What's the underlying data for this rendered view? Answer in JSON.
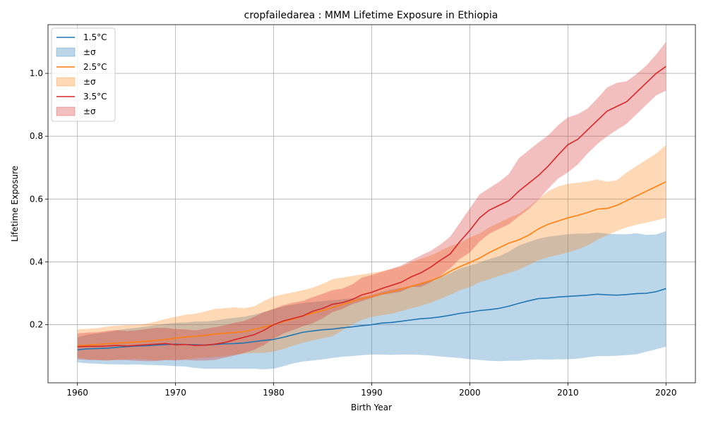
{
  "chart_data": {
    "type": "line",
    "title": "cropfailedarea : MMM Lifetime Exposure in Ethiopia",
    "xlabel": "Birth Year",
    "ylabel": "Lifetime Exposure",
    "xlim": [
      1957,
      2023
    ],
    "ylim": [
      0.015,
      1.155
    ],
    "xticks": [
      1960,
      1970,
      1980,
      1990,
      2000,
      2010,
      2020
    ],
    "yticks": [
      0.2,
      0.4,
      0.6,
      0.8,
      1.0
    ],
    "ytick_labels": [
      "0.2",
      "0.4",
      "0.6",
      "0.8",
      "1.0"
    ],
    "grid": true,
    "legend_position": "top-left",
    "x": [
      1960,
      1961,
      1962,
      1963,
      1964,
      1965,
      1966,
      1967,
      1968,
      1969,
      1970,
      1971,
      1972,
      1973,
      1974,
      1975,
      1976,
      1977,
      1978,
      1979,
      1980,
      1981,
      1982,
      1983,
      1984,
      1985,
      1986,
      1987,
      1988,
      1989,
      1990,
      1991,
      1992,
      1993,
      1994,
      1995,
      1996,
      1997,
      1998,
      1999,
      2000,
      2001,
      2002,
      2003,
      2004,
      2005,
      2006,
      2007,
      2008,
      2009,
      2010,
      2011,
      2012,
      2013,
      2014,
      2015,
      2016,
      2017,
      2018,
      2019,
      2020
    ],
    "series": [
      {
        "name": "1.5°C",
        "band_name": "±σ",
        "color": "#1f77b4",
        "values": [
          0.12,
          0.123,
          0.124,
          0.125,
          0.128,
          0.13,
          0.132,
          0.133,
          0.135,
          0.137,
          0.138,
          0.137,
          0.136,
          0.135,
          0.137,
          0.139,
          0.14,
          0.142,
          0.146,
          0.15,
          0.153,
          0.16,
          0.168,
          0.176,
          0.18,
          0.184,
          0.186,
          0.19,
          0.193,
          0.197,
          0.2,
          0.205,
          0.207,
          0.211,
          0.215,
          0.219,
          0.221,
          0.225,
          0.23,
          0.236,
          0.24,
          0.245,
          0.248,
          0.252,
          0.259,
          0.268,
          0.276,
          0.283,
          0.285,
          0.288,
          0.29,
          0.292,
          0.294,
          0.297,
          0.295,
          0.294,
          0.296,
          0.299,
          0.3,
          0.305,
          0.315
        ],
        "lower": [
          0.08,
          0.077,
          0.076,
          0.074,
          0.074,
          0.073,
          0.074,
          0.072,
          0.071,
          0.07,
          0.068,
          0.067,
          0.062,
          0.06,
          0.06,
          0.06,
          0.06,
          0.06,
          0.06,
          0.058,
          0.06,
          0.068,
          0.077,
          0.083,
          0.086,
          0.09,
          0.094,
          0.098,
          0.1,
          0.103,
          0.105,
          0.105,
          0.104,
          0.105,
          0.105,
          0.104,
          0.102,
          0.099,
          0.096,
          0.094,
          0.09,
          0.088,
          0.085,
          0.084,
          0.085,
          0.085,
          0.088,
          0.09,
          0.089,
          0.09,
          0.09,
          0.092,
          0.096,
          0.1,
          0.1,
          0.101,
          0.103,
          0.106,
          0.114,
          0.122,
          0.13
        ],
        "upper": [
          0.16,
          0.168,
          0.172,
          0.176,
          0.182,
          0.187,
          0.19,
          0.194,
          0.199,
          0.203,
          0.206,
          0.207,
          0.21,
          0.21,
          0.213,
          0.218,
          0.222,
          0.225,
          0.232,
          0.24,
          0.25,
          0.258,
          0.264,
          0.269,
          0.272,
          0.275,
          0.278,
          0.281,
          0.284,
          0.288,
          0.294,
          0.304,
          0.312,
          0.317,
          0.323,
          0.333,
          0.342,
          0.351,
          0.364,
          0.379,
          0.388,
          0.398,
          0.409,
          0.418,
          0.433,
          0.452,
          0.463,
          0.474,
          0.48,
          0.484,
          0.488,
          0.49,
          0.49,
          0.493,
          0.49,
          0.488,
          0.488,
          0.491,
          0.486,
          0.487,
          0.498
        ]
      },
      {
        "name": "2.5°C",
        "band_name": "±σ",
        "color": "#ff7f0e",
        "values": [
          0.133,
          0.135,
          0.137,
          0.139,
          0.141,
          0.143,
          0.145,
          0.147,
          0.15,
          0.153,
          0.157,
          0.161,
          0.163,
          0.166,
          0.17,
          0.173,
          0.175,
          0.178,
          0.185,
          0.192,
          0.2,
          0.21,
          0.218,
          0.228,
          0.237,
          0.245,
          0.255,
          0.264,
          0.274,
          0.283,
          0.29,
          0.298,
          0.305,
          0.313,
          0.322,
          0.33,
          0.34,
          0.352,
          0.37,
          0.385,
          0.398,
          0.412,
          0.43,
          0.445,
          0.46,
          0.47,
          0.485,
          0.505,
          0.52,
          0.53,
          0.54,
          0.548,
          0.557,
          0.568,
          0.57,
          0.58,
          0.595,
          0.61,
          0.625,
          0.64,
          0.655
        ],
        "lower": [
          0.095,
          0.09,
          0.088,
          0.087,
          0.088,
          0.09,
          0.091,
          0.089,
          0.087,
          0.088,
          0.088,
          0.09,
          0.093,
          0.095,
          0.097,
          0.1,
          0.104,
          0.108,
          0.11,
          0.11,
          0.115,
          0.123,
          0.133,
          0.143,
          0.15,
          0.157,
          0.163,
          0.182,
          0.2,
          0.215,
          0.225,
          0.23,
          0.235,
          0.243,
          0.252,
          0.26,
          0.27,
          0.282,
          0.295,
          0.31,
          0.32,
          0.335,
          0.345,
          0.355,
          0.365,
          0.375,
          0.39,
          0.405,
          0.415,
          0.422,
          0.43,
          0.44,
          0.452,
          0.47,
          0.485,
          0.498,
          0.51,
          0.518,
          0.525,
          0.532,
          0.54
        ],
        "upper": [
          0.185,
          0.187,
          0.189,
          0.194,
          0.197,
          0.199,
          0.2,
          0.203,
          0.21,
          0.218,
          0.225,
          0.232,
          0.235,
          0.242,
          0.25,
          0.253,
          0.255,
          0.253,
          0.258,
          0.275,
          0.29,
          0.297,
          0.303,
          0.31,
          0.318,
          0.33,
          0.345,
          0.35,
          0.355,
          0.36,
          0.365,
          0.37,
          0.377,
          0.385,
          0.398,
          0.41,
          0.42,
          0.435,
          0.45,
          0.46,
          0.478,
          0.49,
          0.51,
          0.525,
          0.54,
          0.553,
          0.575,
          0.6,
          0.625,
          0.64,
          0.648,
          0.652,
          0.656,
          0.662,
          0.655,
          0.66,
          0.685,
          0.705,
          0.725,
          0.745,
          0.772
        ]
      },
      {
        "name": "3.5°C",
        "band_name": "±σ",
        "color": "#d62728",
        "values": [
          0.13,
          0.131,
          0.131,
          0.132,
          0.134,
          0.132,
          0.134,
          0.136,
          0.138,
          0.14,
          0.136,
          0.137,
          0.134,
          0.135,
          0.138,
          0.143,
          0.152,
          0.16,
          0.168,
          0.182,
          0.2,
          0.212,
          0.22,
          0.228,
          0.243,
          0.252,
          0.265,
          0.27,
          0.28,
          0.295,
          0.303,
          0.315,
          0.325,
          0.335,
          0.352,
          0.365,
          0.383,
          0.405,
          0.425,
          0.465,
          0.5,
          0.54,
          0.565,
          0.58,
          0.595,
          0.625,
          0.65,
          0.675,
          0.705,
          0.74,
          0.773,
          0.79,
          0.82,
          0.85,
          0.88,
          0.895,
          0.91,
          0.94,
          0.97,
          1.0,
          1.022
        ],
        "lower": [
          0.09,
          0.088,
          0.087,
          0.086,
          0.088,
          0.087,
          0.085,
          0.084,
          0.084,
          0.087,
          0.086,
          0.088,
          0.086,
          0.086,
          0.088,
          0.095,
          0.102,
          0.11,
          0.12,
          0.135,
          0.155,
          0.172,
          0.183,
          0.195,
          0.205,
          0.22,
          0.24,
          0.25,
          0.265,
          0.275,
          0.285,
          0.295,
          0.3,
          0.305,
          0.32,
          0.32,
          0.335,
          0.355,
          0.38,
          0.41,
          0.43,
          0.465,
          0.49,
          0.505,
          0.52,
          0.545,
          0.568,
          0.598,
          0.633,
          0.665,
          0.685,
          0.71,
          0.745,
          0.775,
          0.8,
          0.82,
          0.84,
          0.87,
          0.9,
          0.93,
          0.945
        ],
        "upper": [
          0.172,
          0.175,
          0.176,
          0.18,
          0.183,
          0.18,
          0.182,
          0.186,
          0.19,
          0.19,
          0.186,
          0.185,
          0.182,
          0.187,
          0.192,
          0.198,
          0.206,
          0.212,
          0.225,
          0.24,
          0.25,
          0.262,
          0.27,
          0.276,
          0.288,
          0.298,
          0.31,
          0.315,
          0.328,
          0.35,
          0.358,
          0.368,
          0.378,
          0.388,
          0.405,
          0.42,
          0.435,
          0.455,
          0.48,
          0.525,
          0.57,
          0.615,
          0.635,
          0.655,
          0.68,
          0.73,
          0.755,
          0.78,
          0.803,
          0.835,
          0.86,
          0.87,
          0.888,
          0.92,
          0.955,
          0.97,
          0.975,
          0.998,
          1.025,
          1.06,
          1.1
        ]
      }
    ]
  }
}
